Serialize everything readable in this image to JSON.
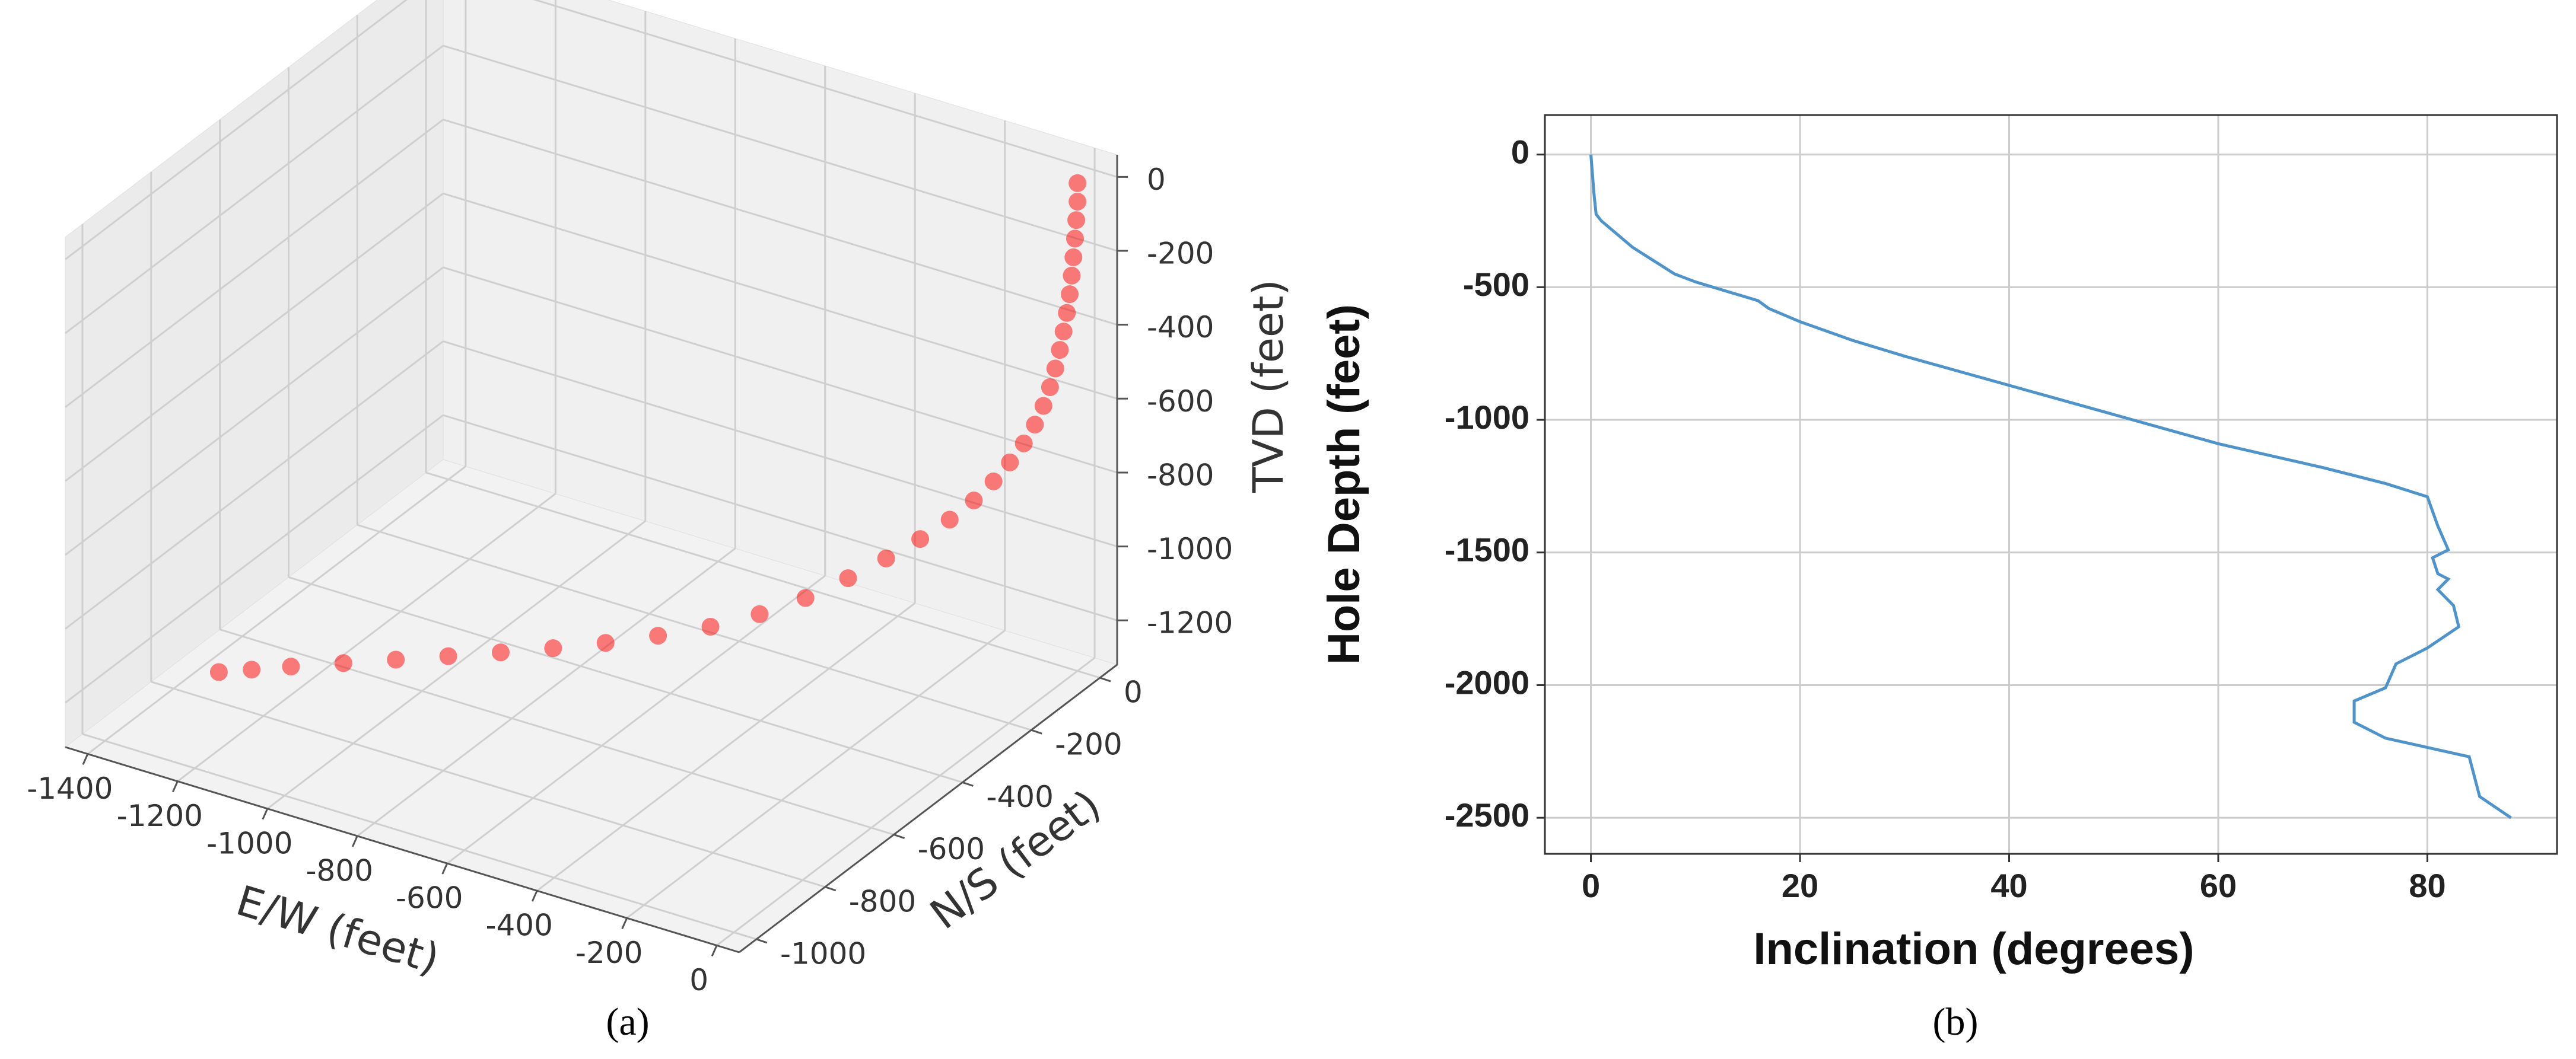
{
  "chart_data": [
    {
      "type": "scatter3d",
      "caption": "(a)",
      "x_label": "E/W (feet)",
      "y_label": "N/S (feet)",
      "z_label": "TVD (feet)",
      "x": [
        0,
        0,
        -2,
        -4,
        -6,
        -9,
        -12,
        -16,
        -21,
        -27,
        -34,
        -42,
        -52,
        -65,
        -82,
        -103,
        -128,
        -158,
        -195,
        -240,
        -292,
        -350,
        -415,
        -485,
        -560,
        -640,
        -720,
        -800,
        -880,
        -960,
        -1040,
        -1120,
        -1200,
        -1260,
        -1310
      ],
      "y": [
        0,
        0,
        -1,
        -2,
        -4,
        -5,
        -7,
        -10,
        -13,
        -16,
        -20,
        -25,
        -31,
        -39,
        -49,
        -62,
        -77,
        -95,
        -117,
        -144,
        -175,
        -210,
        -249,
        -291,
        -336,
        -384,
        -432,
        -480,
        -528,
        -576,
        -624,
        -672,
        -720,
        -756,
        -786
      ],
      "z": [
        0,
        -50,
        -100,
        -150,
        -200,
        -250,
        -300,
        -350,
        -400,
        -450,
        -500,
        -550,
        -600,
        -650,
        -700,
        -750,
        -800,
        -850,
        -900,
        -950,
        -1000,
        -1050,
        -1100,
        -1140,
        -1170,
        -1190,
        -1205,
        -1215,
        -1222,
        -1228,
        -1233,
        -1238,
        -1243,
        -1248,
        -1252
      ],
      "color": "#ff0000",
      "xlim": [
        -1450,
        50
      ],
      "ylim": [
        -1050,
        50
      ],
      "zlim": [
        -1320,
        60
      ],
      "xticks": [
        -1400,
        -1200,
        -1000,
        -800,
        -600,
        -400,
        -200,
        0
      ],
      "yticks": [
        -1000,
        -800,
        -600,
        -400,
        -200,
        0
      ],
      "zticks": [
        -1200,
        -1000,
        -800,
        -600,
        -400,
        -200,
        0
      ],
      "grid": true
    },
    {
      "type": "line",
      "caption": "(b)",
      "x_label": "Inclination (degrees)",
      "y_label": "Hole Depth (feet)",
      "x": [
        0,
        0.3,
        0.5,
        1,
        4,
        6,
        8,
        10,
        16,
        17,
        20,
        25,
        30,
        40,
        50,
        60,
        70,
        76,
        80,
        81,
        82,
        80.5,
        81,
        82,
        81,
        82.5,
        83,
        80,
        77,
        76,
        73,
        73,
        76,
        84,
        85,
        88
      ],
      "values": [
        0,
        -150,
        -225,
        -250,
        -350,
        -400,
        -450,
        -480,
        -551,
        -580,
        -630,
        -700,
        -760,
        -870,
        -980,
        -1090,
        -1180,
        -1240,
        -1290,
        -1400,
        -1490,
        -1520,
        -1580,
        -1600,
        -1640,
        -1700,
        -1780,
        -1860,
        -1920,
        -2010,
        -2060,
        -2140,
        -2200,
        -2270,
        -2420,
        -2500
      ],
      "color": "#4f93c8",
      "xlim": [
        -4.4,
        92.4
      ],
      "ylim": [
        -2636,
        149
      ],
      "xticks": [
        0,
        20,
        40,
        60,
        80
      ],
      "yticks": [
        0,
        -500,
        -1000,
        -1500,
        -2000,
        -2500
      ],
      "grid": true
    }
  ]
}
